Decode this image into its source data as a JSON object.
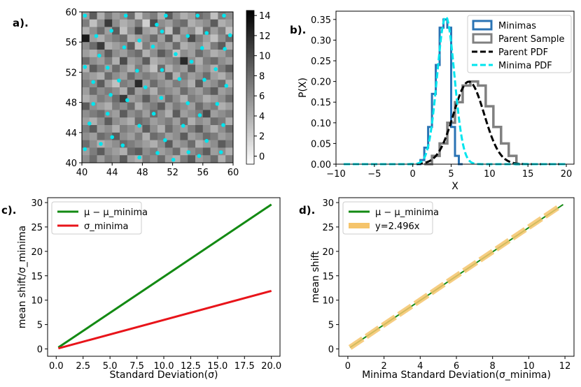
{
  "chart_data": [
    {
      "panel_label": "a).",
      "type": "heatmap",
      "xlim": [
        40,
        60
      ],
      "ylim": [
        40,
        60
      ],
      "x_ticks": [
        "40",
        "44",
        "48",
        "52",
        "56",
        "60"
      ],
      "y_ticks": [
        "40",
        "44",
        "48",
        "52",
        "56",
        "60"
      ],
      "colorbar": {
        "ticks": [
          "0",
          "2",
          "4",
          "6",
          "8",
          "10",
          "12",
          "14"
        ],
        "range": [
          -0.8,
          14.5
        ],
        "colormap": "gray_r"
      },
      "grid_size": [
        20,
        20
      ],
      "values": [
        [
          5,
          9,
          4,
          7,
          5,
          6,
          8,
          3,
          6,
          7,
          4,
          9,
          6,
          4,
          5,
          8,
          7,
          3,
          7,
          6
        ],
        [
          7,
          3,
          6,
          11,
          6,
          4,
          5,
          7,
          2,
          10,
          6,
          5,
          7,
          8,
          4,
          5,
          6,
          9,
          4,
          5
        ],
        [
          4,
          6,
          8,
          5,
          9,
          3,
          6,
          10,
          5,
          4,
          7,
          3,
          9,
          5,
          6,
          3,
          8,
          5,
          7,
          3
        ],
        [
          13,
          5,
          4,
          6,
          7,
          8,
          4,
          5,
          6,
          8,
          5,
          9,
          4,
          6,
          10,
          7,
          5,
          3,
          6,
          8
        ],
        [
          6,
          8,
          11,
          4,
          5,
          6,
          9,
          3,
          7,
          5,
          6,
          5,
          8,
          4,
          5,
          6,
          4,
          7,
          9,
          4
        ],
        [
          5,
          4,
          6,
          9,
          6,
          5,
          7,
          8,
          4,
          6,
          9,
          7,
          3,
          6,
          5,
          8,
          6,
          4,
          5,
          7
        ],
        [
          8,
          6,
          5,
          7,
          4,
          10,
          5,
          6,
          9,
          4,
          5,
          6,
          7,
          12,
          6,
          4,
          7,
          8,
          6,
          5
        ],
        [
          4,
          9,
          7,
          5,
          8,
          6,
          4,
          7,
          5,
          3,
          8,
          4,
          6,
          5,
          9,
          5,
          6,
          4,
          7,
          9
        ],
        [
          6,
          5,
          4,
          8,
          6,
          5,
          8,
          6,
          7,
          6,
          5,
          9,
          4,
          7,
          5,
          6,
          8,
          5,
          4,
          6
        ],
        [
          7,
          6,
          9,
          5,
          3,
          7,
          6,
          12,
          5,
          8,
          6,
          5,
          7,
          6,
          4,
          9,
          5,
          6,
          8,
          4
        ],
        [
          5,
          8,
          6,
          7,
          6,
          4,
          9,
          5,
          6,
          4,
          7,
          6,
          5,
          8,
          6,
          5,
          7,
          9,
          5,
          6
        ],
        [
          4,
          5,
          7,
          6,
          8,
          11,
          5,
          6,
          9,
          6,
          5,
          8,
          6,
          4,
          7,
          6,
          4,
          5,
          6,
          8
        ],
        [
          9,
          6,
          5,
          4,
          7,
          6,
          8,
          4,
          6,
          7,
          9,
          5,
          7,
          6,
          5,
          8,
          6,
          7,
          4,
          5
        ],
        [
          6,
          7,
          8,
          6,
          5,
          9,
          6,
          7,
          5,
          8,
          6,
          4,
          9,
          5,
          6,
          7,
          10,
          5,
          6,
          7
        ],
        [
          5,
          4,
          6,
          9,
          6,
          5,
          4,
          8,
          7,
          5,
          6,
          7,
          5,
          8,
          4,
          6,
          5,
          8,
          7,
          4
        ],
        [
          7,
          9,
          5,
          6,
          4,
          7,
          6,
          5,
          9,
          6,
          4,
          8,
          6,
          5,
          7,
          9,
          6,
          4,
          6,
          8
        ],
        [
          6,
          5,
          8,
          7,
          9,
          6,
          5,
          7,
          4,
          8,
          7,
          5,
          6,
          9,
          5,
          6,
          8,
          7,
          5,
          6
        ],
        [
          8,
          6,
          4,
          5,
          6,
          8,
          7,
          6,
          5,
          4,
          6,
          9,
          5,
          6,
          8,
          4,
          5,
          6,
          9,
          7
        ],
        [
          5,
          7,
          9,
          6,
          5,
          4,
          8,
          9,
          6,
          7,
          5,
          6,
          8,
          4,
          6,
          7,
          9,
          5,
          6,
          4
        ],
        [
          6,
          8,
          5,
          7,
          6,
          9,
          5,
          4,
          7,
          6,
          8,
          5,
          4,
          7,
          9,
          5,
          6,
          8,
          4,
          7
        ]
      ],
      "minima_points": [
        [
          40.4,
          59.5
        ],
        [
          43.9,
          57.5
        ],
        [
          45.8,
          59.5
        ],
        [
          49.9,
          58.3
        ],
        [
          51.1,
          59.5
        ],
        [
          55.3,
          59.5
        ],
        [
          58.8,
          59.5
        ],
        [
          41.9,
          56.8
        ],
        [
          47.6,
          56.2
        ],
        [
          50.6,
          57.4
        ],
        [
          54.0,
          56.8
        ],
        [
          56.5,
          57.2
        ],
        [
          59.6,
          56.9
        ],
        [
          42.3,
          54.2
        ],
        [
          45.6,
          55.3
        ],
        [
          49.4,
          55.4
        ],
        [
          52.4,
          54.4
        ],
        [
          55.9,
          55.2
        ],
        [
          58.9,
          55.1
        ],
        [
          40.4,
          52.7
        ],
        [
          43.4,
          52.6
        ],
        [
          47.3,
          52.2
        ],
        [
          50.6,
          52.3
        ],
        [
          54.5,
          53.4
        ],
        [
          57.7,
          52.4
        ],
        [
          41.5,
          50.7
        ],
        [
          44.9,
          50.9
        ],
        [
          48.4,
          50.0
        ],
        [
          52.9,
          51.1
        ],
        [
          56.2,
          51.0
        ],
        [
          59.1,
          50.2
        ],
        [
          43.8,
          49.0
        ],
        [
          41.5,
          47.8
        ],
        [
          46.0,
          48.3
        ],
        [
          50.5,
          48.6
        ],
        [
          54.0,
          47.9
        ],
        [
          57.9,
          47.8
        ],
        [
          43.4,
          46.5
        ],
        [
          49.5,
          46.5
        ],
        [
          55.6,
          46.3
        ],
        [
          41.0,
          45.2
        ],
        [
          47.6,
          44.9
        ],
        [
          53.4,
          44.9
        ],
        [
          58.7,
          45.0
        ],
        [
          44.0,
          43.4
        ],
        [
          51.0,
          43.0
        ],
        [
          56.5,
          42.9
        ],
        [
          40.4,
          41.8
        ],
        [
          42.5,
          42.5
        ],
        [
          45.4,
          42.3
        ],
        [
          50.0,
          41.3
        ],
        [
          54.1,
          41.4
        ],
        [
          58.4,
          41.4
        ],
        [
          47.6,
          40.7
        ],
        [
          52.1,
          40.4
        ],
        [
          55.5,
          40.9
        ]
      ]
    },
    {
      "panel_label": "b).",
      "type": "line",
      "xlabel": "X",
      "ylabel": "P(X)",
      "xlim": [
        -10,
        21
      ],
      "ylim": [
        0,
        0.37
      ],
      "x_ticks": [
        "−10",
        "−5",
        "0",
        "5",
        "10",
        "15",
        "20"
      ],
      "y_ticks": [
        "0.00",
        "0.05",
        "0.10",
        "0.15",
        "0.20",
        "0.25",
        "0.30",
        "0.35"
      ],
      "legend": [
        "Minimas",
        "Parent Sample",
        "Parent PDF",
        "Minima PDF"
      ],
      "legend_position": "top-right",
      "minimas_hist": {
        "edges": [
          0.5,
          1.0,
          1.5,
          2.0,
          2.5,
          3.0,
          3.5,
          4.0,
          4.5,
          5.0,
          5.5,
          6.0
        ],
        "values": [
          0.0,
          0.01,
          0.04,
          0.09,
          0.17,
          0.24,
          0.33,
          0.35,
          0.33,
          0.09,
          0.02,
          0.0
        ]
      },
      "parent_hist": {
        "edges": [
          1.5,
          2.5,
          3.5,
          4.5,
          5.5,
          6.5,
          7.5,
          8.5,
          9.5,
          10.5,
          11.5,
          12.5,
          13.5
        ],
        "values": [
          0.0,
          0.02,
          0.05,
          0.1,
          0.15,
          0.19,
          0.2,
          0.19,
          0.14,
          0.09,
          0.05,
          0.02,
          0.0
        ]
      },
      "parent_pdf": {
        "mu": 7.3,
        "sigma": 2.0
      },
      "minima_pdf": {
        "mu": 4.3,
        "sigma": 1.12
      }
    },
    {
      "panel_label": "c).",
      "type": "line",
      "xlabel": "Standard Deviation(σ)",
      "ylabel": "mean shift/σ_minima",
      "xlim": [
        -0.8,
        20.8
      ],
      "ylim": [
        -1.5,
        31
      ],
      "x_ticks": [
        "0.0",
        "2.5",
        "5.0",
        "7.5",
        "10.0",
        "12.5",
        "15.0",
        "17.5",
        "20.0"
      ],
      "y_ticks": [
        "0",
        "5",
        "10",
        "15",
        "20",
        "25",
        "30"
      ],
      "legend": [
        "μ − μ_minima",
        "σ_minima"
      ],
      "legend_position": "top-left",
      "series": [
        {
          "name": "μ − μ_minima",
          "x": [
            0.2,
            20.0
          ],
          "y": [
            0.3,
            29.6
          ],
          "color": "#138a13"
        },
        {
          "name": "σ_minima",
          "x": [
            0.2,
            20.0
          ],
          "y": [
            0.12,
            11.9
          ],
          "color": "#e8141a"
        }
      ]
    },
    {
      "panel_label": "d).",
      "type": "line",
      "xlabel": "Minima Standard Deviation(σ_minima)",
      "ylabel": "mean shift",
      "xlim": [
        -0.5,
        12.5
      ],
      "ylim": [
        -1.5,
        31
      ],
      "x_ticks": [
        "0",
        "2",
        "4",
        "6",
        "8",
        "10",
        "12"
      ],
      "y_ticks": [
        "0",
        "5",
        "10",
        "15",
        "20",
        "25",
        "30"
      ],
      "legend": [
        "μ − μ_minima",
        "y=2.496x"
      ],
      "legend_position": "top-left",
      "series": [
        {
          "name": "μ − μ_minima",
          "x": [
            0.12,
            11.9
          ],
          "y": [
            0.3,
            29.6
          ],
          "color": "#138a13"
        },
        {
          "name": "y=2.496x",
          "x": [
            0.12,
            11.6
          ],
          "y": [
            0.3,
            28.95
          ],
          "color": "#f5c46b"
        }
      ]
    }
  ]
}
